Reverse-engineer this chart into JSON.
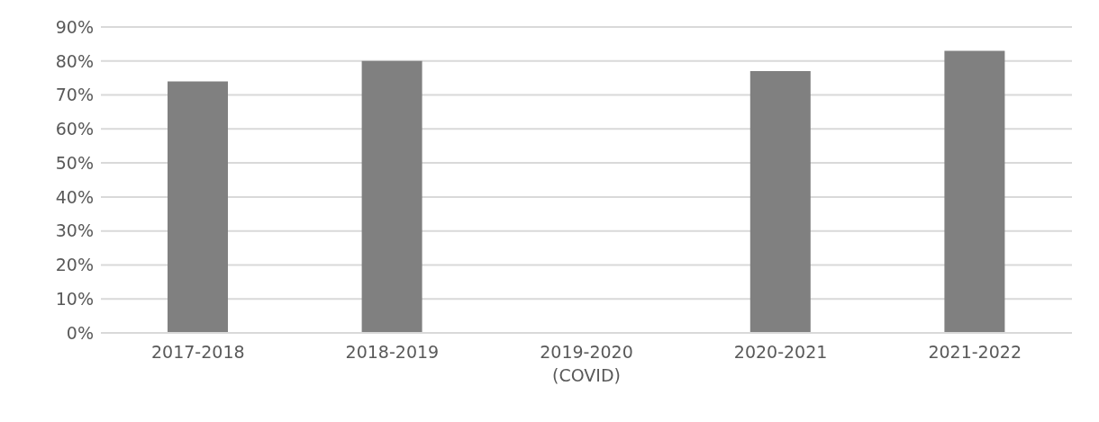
{
  "chart_data": {
    "type": "bar",
    "categories": [
      "2017-2018",
      "2018-2019",
      "2019-2020\n(COVID)",
      "2020-2021",
      "2021-2022"
    ],
    "values": [
      74,
      80,
      null,
      77,
      83
    ],
    "color": "#808080",
    "ylim": [
      0,
      90
    ],
    "yticks": [
      {
        "value": 0,
        "label": "0%"
      },
      {
        "value": 10,
        "label": "10%"
      },
      {
        "value": 20,
        "label": "20%"
      },
      {
        "value": 30,
        "label": "30%"
      },
      {
        "value": 40,
        "label": "40%"
      },
      {
        "value": 50,
        "label": "50%"
      },
      {
        "value": 60,
        "label": "60%"
      },
      {
        "value": 70,
        "label": "70%"
      },
      {
        "value": 80,
        "label": "80%"
      },
      {
        "value": 90,
        "label": "90%"
      }
    ],
    "grid": "y"
  }
}
